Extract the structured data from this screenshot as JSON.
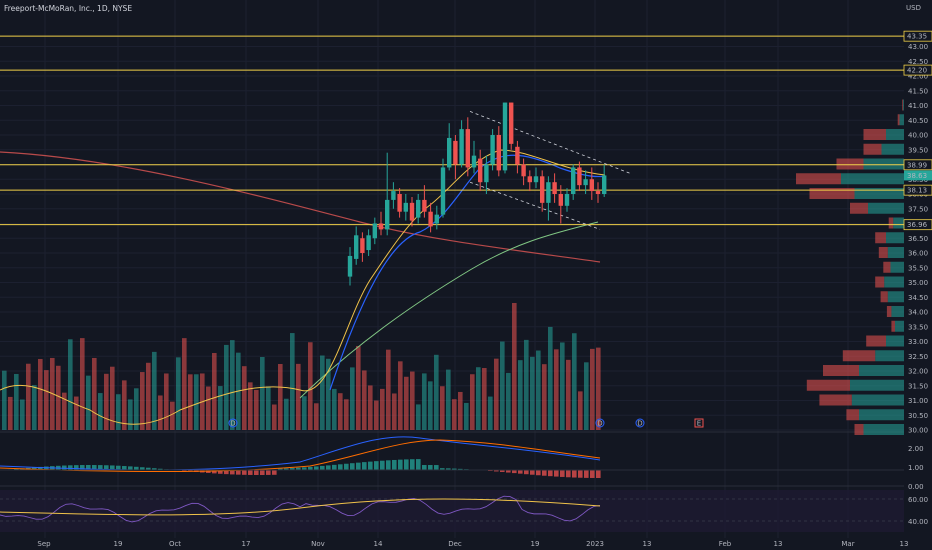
{
  "header": {
    "title": "Freeport-McMoRan, Inc., 1D, NYSE",
    "currency": "USD"
  },
  "colors": {
    "background": "#131722",
    "up": "#26a69a",
    "down": "#ef5350",
    "level_line": "#f0d048",
    "ma_fast": "#f0c34a",
    "ma_mid": "#2962ff",
    "ma_slow_green": "#81c784",
    "ma_slow_red": "#b84a4a",
    "macd_line": "#2962ff",
    "macd_signal": "#ff6d00",
    "rsi_line": "#7e57c2",
    "rsi_ma": "#f0c34a"
  },
  "price_axis": {
    "ticks": [
      "43.00",
      "42.50",
      "42.00",
      "41.50",
      "41.00",
      "40.50",
      "40.00",
      "39.50",
      "39.00",
      "38.50",
      "38.00",
      "37.50",
      "37.00",
      "36.50",
      "36.00",
      "35.50",
      "35.00",
      "34.50",
      "34.00",
      "33.50",
      "33.00",
      "32.50",
      "32.00",
      "31.50",
      "31.00",
      "30.50",
      "30.00"
    ],
    "highlighted": [
      {
        "label": "43.35",
        "value": 43.35
      },
      {
        "label": "42.20",
        "value": 42.2
      },
      {
        "label": "38.99",
        "value": 38.99
      },
      {
        "label": "38.63",
        "value": 38.63
      },
      {
        "label": "38.13",
        "value": 38.13
      },
      {
        "label": "36.96",
        "value": 36.96
      }
    ]
  },
  "macd_axis": {
    "ticks": [
      "2.00",
      "1.00",
      "0.00"
    ]
  },
  "rsi_axis": {
    "ticks": [
      "60.00",
      "40.00"
    ]
  },
  "time_axis": {
    "labels": [
      "Sep",
      "19",
      "Oct",
      "17",
      "Nov",
      "14",
      "Dec",
      "19",
      "2023",
      "13",
      "Feb",
      "13",
      "Mar",
      "13"
    ]
  },
  "event_markers": [
    "D",
    "D",
    "D",
    "E"
  ],
  "chart_data": {
    "type": "candlestick",
    "symbol": "Freeport-McMoRan, Inc.",
    "interval": "1D",
    "exchange": "NYSE",
    "ylim": [
      30.0,
      44.0
    ],
    "horizontal_levels": [
      43.35,
      42.2,
      38.99,
      38.13,
      36.96
    ],
    "last_price": 38.63,
    "candles": [
      {
        "o": 35.2,
        "c": 35.9,
        "h": 36.2,
        "l": 34.9
      },
      {
        "o": 35.8,
        "c": 36.6,
        "h": 36.9,
        "l": 35.6
      },
      {
        "o": 36.5,
        "c": 36.0,
        "h": 36.7,
        "l": 35.7
      },
      {
        "o": 36.1,
        "c": 36.6,
        "h": 36.8,
        "l": 35.9
      },
      {
        "o": 36.5,
        "c": 37.0,
        "h": 37.2,
        "l": 36.3
      },
      {
        "o": 37.0,
        "c": 36.8,
        "h": 37.4,
        "l": 36.6
      },
      {
        "o": 36.8,
        "c": 37.8,
        "h": 39.4,
        "l": 36.6
      },
      {
        "o": 37.8,
        "c": 38.1,
        "h": 38.4,
        "l": 37.5
      },
      {
        "o": 38.0,
        "c": 37.4,
        "h": 38.2,
        "l": 37.2
      },
      {
        "o": 37.4,
        "c": 37.7,
        "h": 38.0,
        "l": 37.1
      },
      {
        "o": 37.7,
        "c": 37.1,
        "h": 37.9,
        "l": 36.9
      },
      {
        "o": 37.2,
        "c": 37.8,
        "h": 38.0,
        "l": 37.0
      },
      {
        "o": 37.8,
        "c": 37.4,
        "h": 38.3,
        "l": 37.2
      },
      {
        "o": 37.4,
        "c": 36.9,
        "h": 37.7,
        "l": 36.7
      },
      {
        "o": 37.0,
        "c": 37.3,
        "h": 37.6,
        "l": 36.8
      },
      {
        "o": 37.3,
        "c": 38.9,
        "h": 39.2,
        "l": 37.2
      },
      {
        "o": 38.9,
        "c": 39.9,
        "h": 40.4,
        "l": 38.8
      },
      {
        "o": 39.8,
        "c": 39.0,
        "h": 40.0,
        "l": 38.5
      },
      {
        "o": 39.0,
        "c": 40.2,
        "h": 40.5,
        "l": 38.9
      },
      {
        "o": 40.2,
        "c": 38.9,
        "h": 40.6,
        "l": 38.6
      },
      {
        "o": 38.9,
        "c": 39.3,
        "h": 39.8,
        "l": 38.7
      },
      {
        "o": 39.2,
        "c": 38.4,
        "h": 39.5,
        "l": 38.1
      },
      {
        "o": 38.4,
        "c": 39.0,
        "h": 39.3,
        "l": 38.0
      },
      {
        "o": 39.0,
        "c": 40.0,
        "h": 40.2,
        "l": 38.8
      },
      {
        "o": 40.0,
        "c": 38.8,
        "h": 40.3,
        "l": 38.6
      },
      {
        "o": 38.8,
        "c": 41.1,
        "h": 41.1,
        "l": 38.7
      },
      {
        "o": 41.1,
        "c": 39.7,
        "h": 41.1,
        "l": 39.5
      },
      {
        "o": 39.6,
        "c": 39.0,
        "h": 39.8,
        "l": 38.7
      },
      {
        "o": 39.0,
        "c": 38.6,
        "h": 39.2,
        "l": 38.3
      },
      {
        "o": 38.6,
        "c": 38.4,
        "h": 38.8,
        "l": 38.1
      },
      {
        "o": 38.4,
        "c": 38.6,
        "h": 38.9,
        "l": 38.2
      },
      {
        "o": 38.6,
        "c": 37.7,
        "h": 38.8,
        "l": 37.4
      },
      {
        "o": 37.7,
        "c": 38.4,
        "h": 38.6,
        "l": 37.1
      },
      {
        "o": 38.4,
        "c": 38.0,
        "h": 38.7,
        "l": 37.7
      },
      {
        "o": 38.0,
        "c": 37.6,
        "h": 38.3,
        "l": 37.0
      },
      {
        "o": 37.6,
        "c": 38.0,
        "h": 38.2,
        "l": 37.4
      },
      {
        "o": 38.0,
        "c": 38.9,
        "h": 39.0,
        "l": 37.8
      },
      {
        "o": 38.9,
        "c": 38.3,
        "h": 39.1,
        "l": 38.1
      },
      {
        "o": 38.3,
        "c": 38.5,
        "h": 38.8,
        "l": 38.0
      },
      {
        "o": 38.5,
        "c": 38.1,
        "h": 38.9,
        "l": 37.8
      },
      {
        "o": 38.1,
        "c": 38.0,
        "h": 38.4,
        "l": 37.7
      },
      {
        "o": 38.0,
        "c": 38.63,
        "h": 38.99,
        "l": 37.9
      }
    ],
    "volume_profile": [
      {
        "price": 43.5,
        "up": 0,
        "down": 0
      },
      {
        "price": 41.0,
        "up": 1,
        "down": 1
      },
      {
        "price": 40.5,
        "up": 5,
        "down": 2
      },
      {
        "price": 40.0,
        "up": 20,
        "down": 25
      },
      {
        "price": 39.5,
        "up": 25,
        "down": 20
      },
      {
        "price": 39.0,
        "up": 45,
        "down": 30
      },
      {
        "price": 38.5,
        "up": 70,
        "down": 50
      },
      {
        "price": 38.0,
        "up": 55,
        "down": 50
      },
      {
        "price": 37.5,
        "up": 40,
        "down": 20
      },
      {
        "price": 37.0,
        "up": 12,
        "down": 5
      },
      {
        "price": 36.5,
        "up": 20,
        "down": 12
      },
      {
        "price": 36.0,
        "up": 18,
        "down": 10
      },
      {
        "price": 35.5,
        "up": 15,
        "down": 8
      },
      {
        "price": 35.0,
        "up": 22,
        "down": 10
      },
      {
        "price": 34.5,
        "up": 18,
        "down": 8
      },
      {
        "price": 34.0,
        "up": 14,
        "down": 5
      },
      {
        "price": 33.5,
        "up": 10,
        "down": 4
      },
      {
        "price": 33.0,
        "up": 20,
        "down": 22
      },
      {
        "price": 32.5,
        "up": 32,
        "down": 36
      },
      {
        "price": 32.0,
        "up": 50,
        "down": 40
      },
      {
        "price": 31.5,
        "up": 60,
        "down": 48
      },
      {
        "price": 31.0,
        "up": 58,
        "down": 36
      },
      {
        "price": 30.5,
        "up": 50,
        "down": 14
      },
      {
        "price": 30.0,
        "up": 45,
        "down": 10
      }
    ],
    "volume": {
      "up_color": "#26a69a",
      "down_color": "#ef5350"
    },
    "macd": {
      "range": [
        -1.0,
        2.5
      ]
    },
    "rsi": {
      "range": [
        30,
        70
      ]
    }
  }
}
